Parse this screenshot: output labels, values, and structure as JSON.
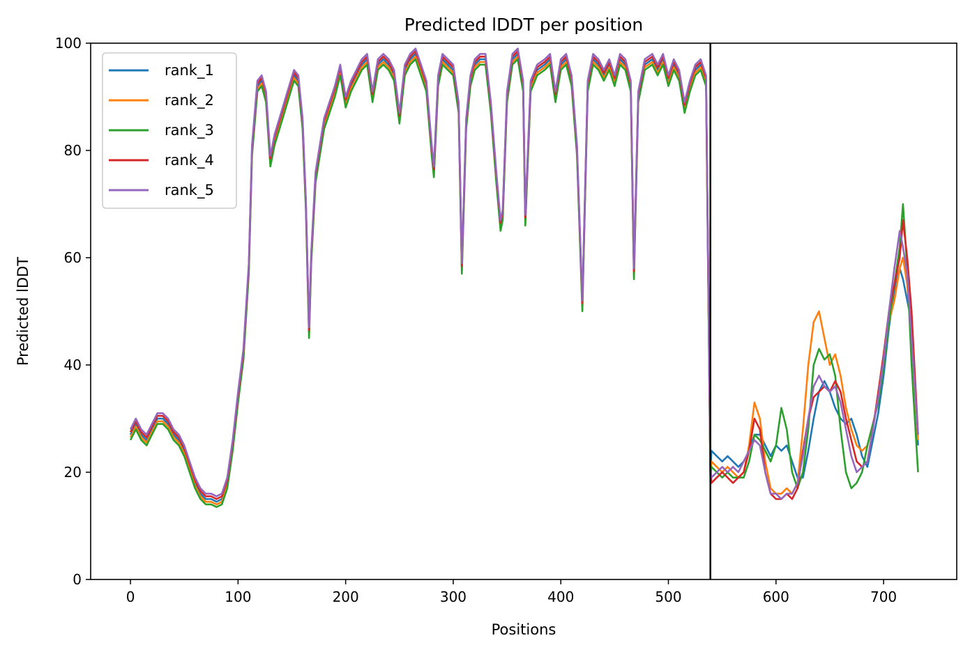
{
  "chart_data": {
    "type": "line",
    "title": "Predicted lDDT per position",
    "xlabel": "Positions",
    "ylabel": "Predicted lDDT",
    "xlim": [
      -37,
      768
    ],
    "ylim": [
      0,
      100
    ],
    "xticks": [
      0,
      100,
      200,
      300,
      400,
      500,
      600,
      700
    ],
    "yticks": [
      0,
      20,
      40,
      60,
      80,
      100
    ],
    "grid": false,
    "legend_position": "upper-left",
    "vline": {
      "x": 539,
      "color": "#000000"
    },
    "colors": {
      "rank_1": "#1f77b4",
      "rank_2": "#ff7f0e",
      "rank_3": "#2ca02c",
      "rank_4": "#d62728",
      "rank_5": "#9467bd"
    },
    "common_profile_positions": [
      0,
      5,
      10,
      15,
      20,
      25,
      30,
      35,
      40,
      45,
      50,
      55,
      60,
      65,
      70,
      75,
      80,
      85,
      90,
      95,
      100,
      105,
      110,
      113,
      118,
      122,
      126,
      130,
      134,
      140,
      146,
      152,
      156,
      160,
      163,
      166,
      168,
      172,
      176,
      180,
      185,
      190,
      195,
      200,
      205,
      210,
      215,
      220,
      225,
      230,
      235,
      240,
      245,
      250,
      255,
      260,
      265,
      270,
      275,
      280,
      282,
      286,
      290,
      295,
      300,
      305,
      308,
      312,
      316,
      320,
      325,
      330,
      335,
      340,
      344,
      346,
      350,
      355,
      360,
      365,
      367,
      372,
      378,
      385,
      390,
      395,
      400,
      405,
      410,
      415,
      420,
      425,
      430,
      435,
      440,
      445,
      450,
      455,
      460,
      465,
      468,
      472,
      478,
      485,
      490,
      495,
      500,
      505,
      510,
      515,
      520,
      525,
      530,
      535,
      539
    ],
    "common_profile_values": [
      27,
      29,
      27,
      26,
      28,
      30,
      30,
      29,
      27,
      26,
      24,
      21,
      18,
      16,
      15,
      15,
      14.5,
      15,
      18,
      25,
      34,
      42,
      58,
      80,
      92,
      93,
      90,
      78,
      82,
      86,
      90,
      94,
      93,
      85,
      70,
      46,
      60,
      75,
      80,
      85,
      88,
      91,
      95,
      89,
      92,
      94,
      96,
      97,
      90,
      96,
      97,
      96,
      94,
      86,
      95,
      97,
      98,
      95,
      92,
      80,
      76,
      93,
      97,
      96,
      95,
      88,
      58,
      85,
      93,
      96,
      97,
      97,
      88,
      75,
      66,
      68,
      90,
      97,
      98,
      92,
      67,
      92,
      95,
      96,
      97,
      90,
      96,
      97,
      93,
      80,
      51,
      92,
      97,
      96,
      94,
      96,
      93,
      97,
      96,
      92,
      57,
      90,
      96,
      97,
      95,
      97,
      93,
      96,
      94,
      88,
      92,
      95,
      96,
      93,
      20
    ],
    "series_offsets": {
      "rank_1": 0,
      "rank_2": -0.5,
      "rank_3": -1,
      "rank_4": 0.5,
      "rank_5": 1
    },
    "tail_positions": [
      540,
      545,
      550,
      555,
      560,
      565,
      570,
      575,
      580,
      585,
      590,
      595,
      600,
      605,
      610,
      615,
      620,
      625,
      630,
      635,
      640,
      645,
      650,
      655,
      660,
      665,
      670,
      675,
      680,
      685,
      690,
      695,
      700,
      705,
      710,
      715,
      718,
      722,
      726,
      732
    ],
    "series": [
      {
        "name": "rank_1",
        "tail_values": [
          24,
          23,
          22,
          23,
          22,
          21,
          22,
          24,
          27,
          27,
          25,
          23,
          25,
          24,
          25,
          22,
          19,
          19,
          24,
          30,
          35,
          37,
          35,
          32,
          30,
          29,
          30,
          27,
          23,
          21,
          26,
          31,
          38,
          47,
          54,
          58,
          56,
          52,
          48,
          25
        ]
      },
      {
        "name": "rank_2",
        "tail_values": [
          22,
          21,
          20,
          21,
          20,
          19,
          20,
          25,
          33,
          30,
          22,
          17,
          16,
          16,
          17,
          16,
          18,
          28,
          40,
          48,
          50,
          45,
          40,
          42,
          38,
          32,
          28,
          25,
          24,
          25,
          29,
          33,
          40,
          48,
          52,
          58,
          60,
          55,
          45,
          26
        ]
      },
      {
        "name": "rank_3",
        "tail_values": [
          21,
          20,
          19,
          20,
          19,
          19,
          19,
          22,
          27,
          26,
          24,
          22,
          25,
          32,
          28,
          20,
          17,
          20,
          28,
          40,
          43,
          41,
          42,
          38,
          28,
          20,
          17,
          18,
          20,
          25,
          29,
          33,
          40,
          48,
          55,
          62,
          70,
          58,
          40,
          20
        ]
      },
      {
        "name": "rank_4",
        "tail_values": [
          18,
          19,
          20,
          19,
          18,
          19,
          20,
          24,
          30,
          28,
          20,
          16,
          15,
          15,
          16,
          15,
          17,
          24,
          30,
          34,
          35,
          36,
          35,
          37,
          35,
          30,
          26,
          22,
          21,
          22,
          28,
          35,
          42,
          50,
          55,
          60,
          67,
          60,
          50,
          27
        ]
      },
      {
        "name": "rank_5",
        "tail_values": [
          19,
          20,
          21,
          20,
          21,
          20,
          22,
          24,
          26,
          25,
          20,
          16,
          16,
          15,
          16,
          16,
          18,
          23,
          30,
          36,
          38,
          36,
          35,
          36,
          33,
          28,
          23,
          20,
          21,
          22,
          28,
          34,
          41,
          50,
          58,
          65,
          62,
          57,
          45,
          27
        ]
      }
    ]
  }
}
